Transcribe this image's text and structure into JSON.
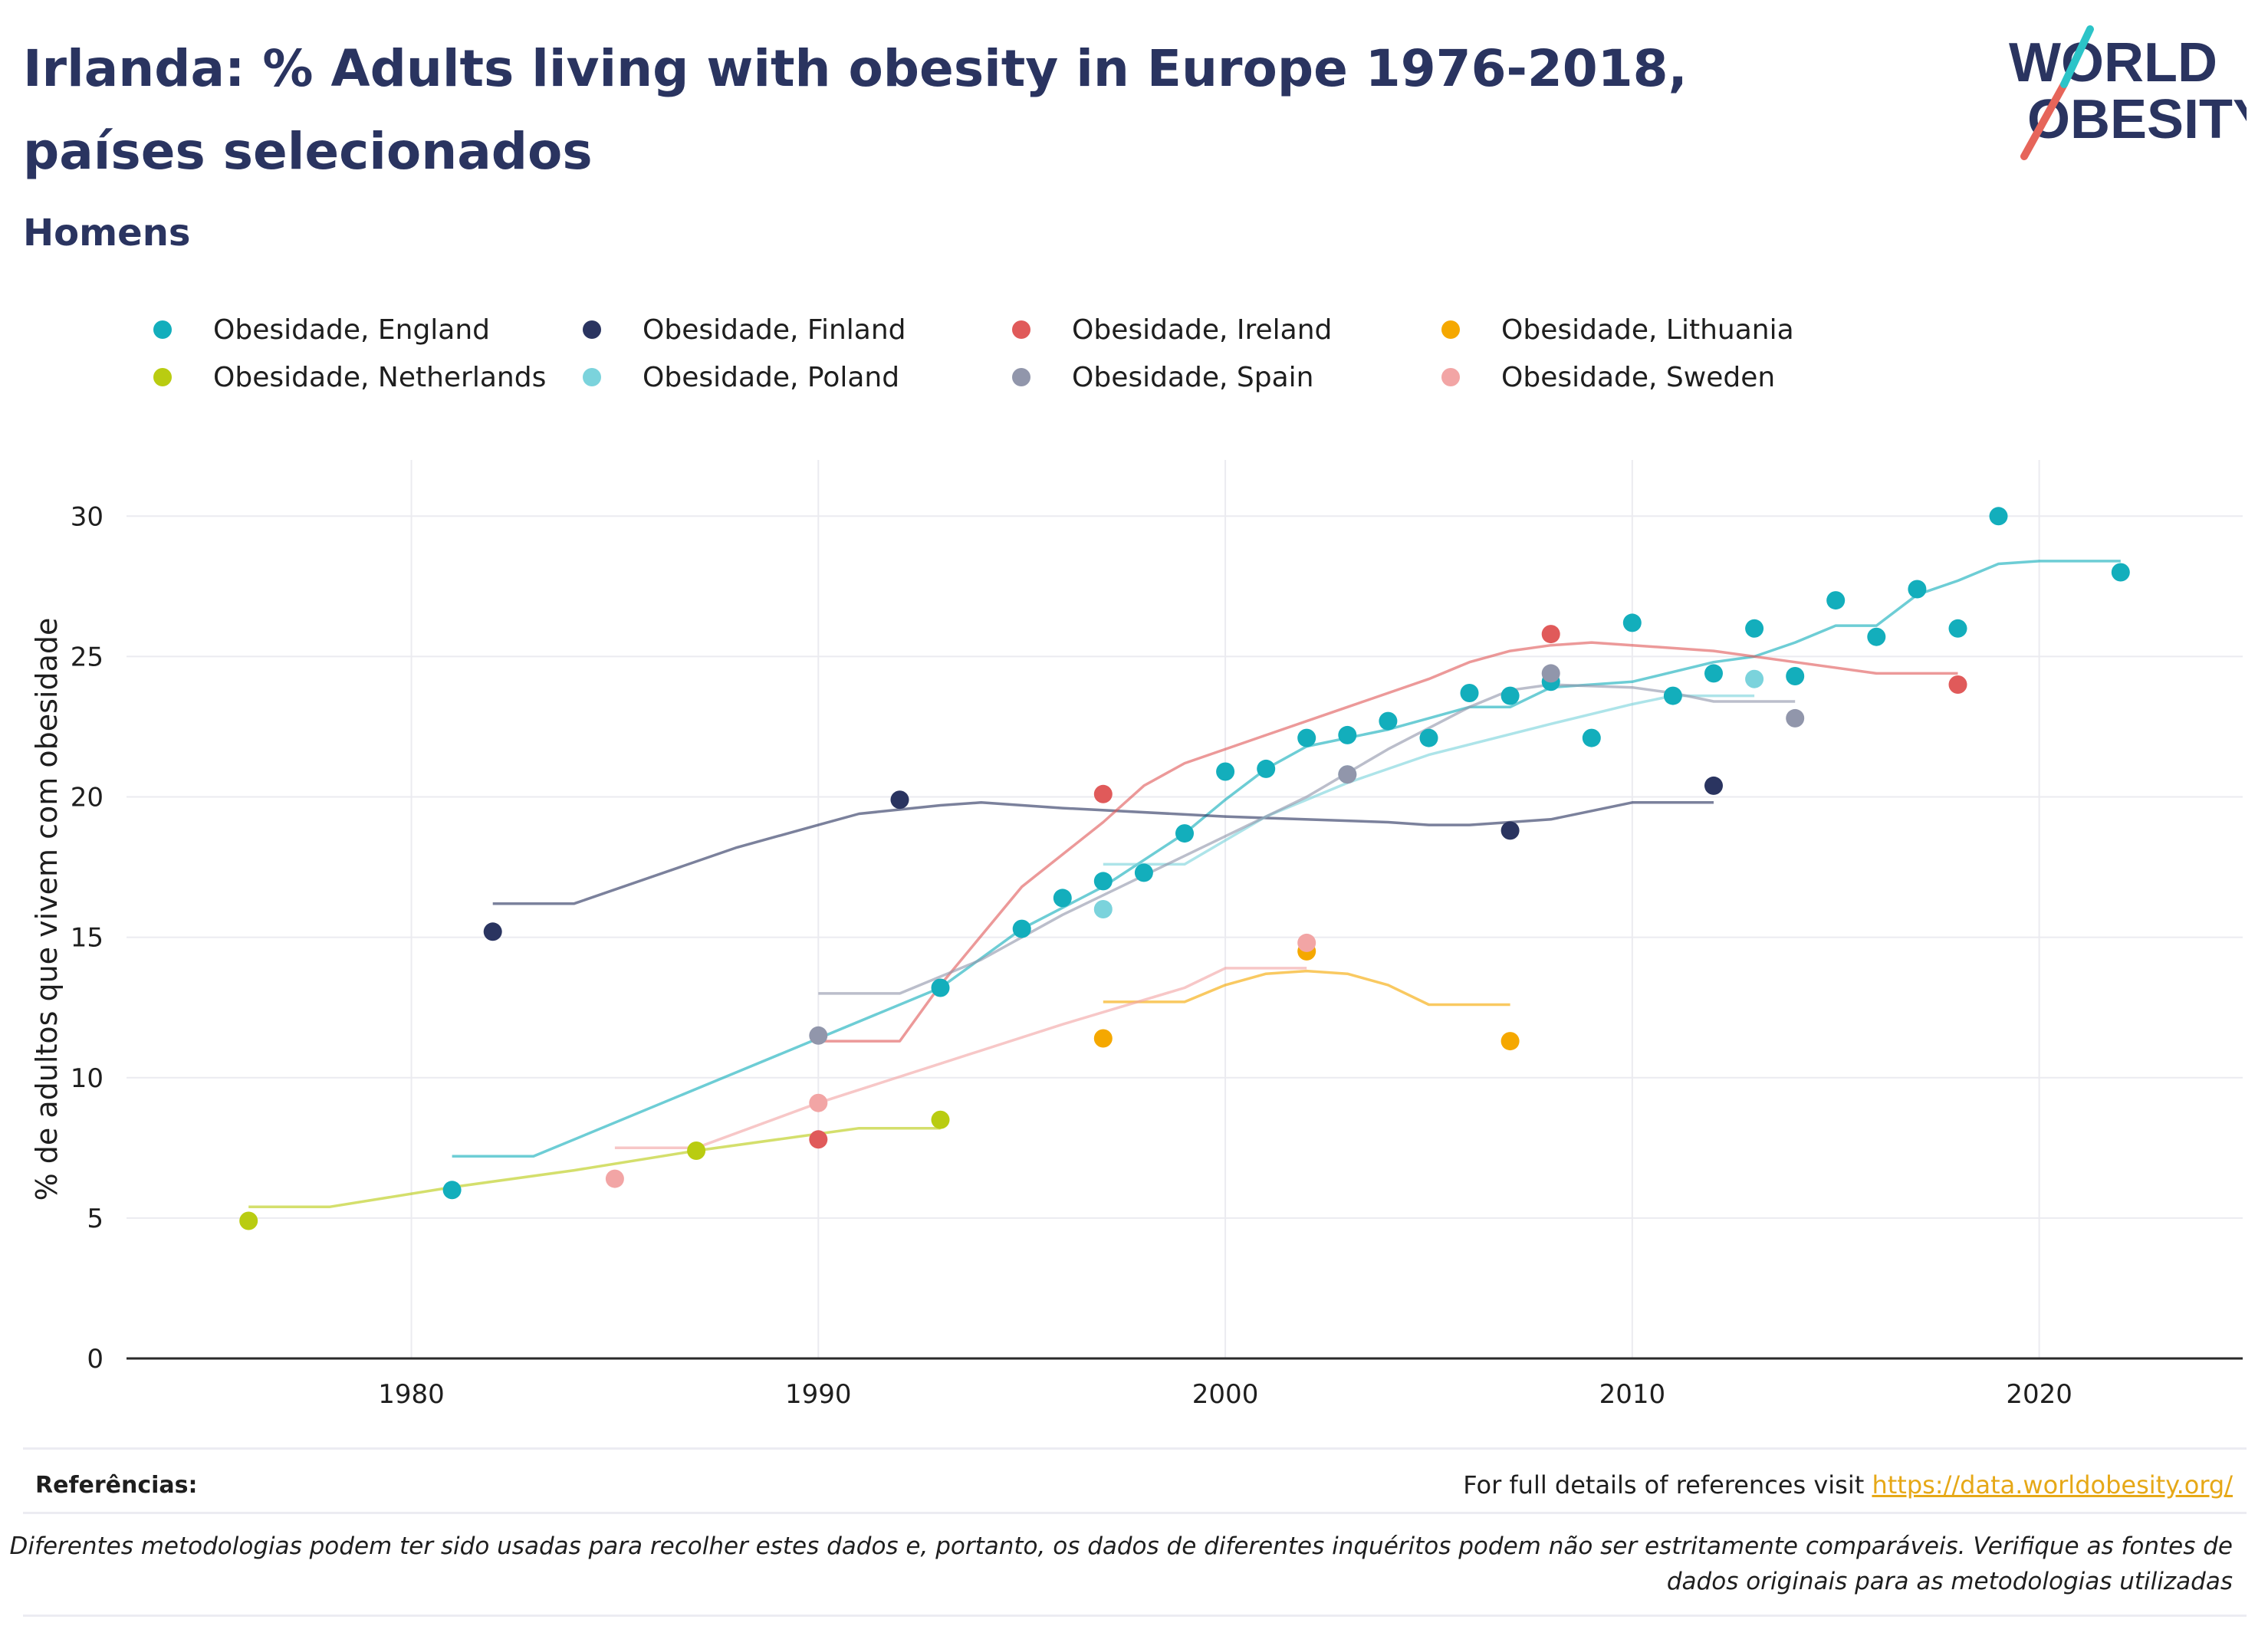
{
  "title": "Irlanda: % Adults living with obesity in Europe 1976-2018, países selecionados",
  "subtitle": "Homens",
  "logo": {
    "line1": "WORLD",
    "line2": "OBESITY"
  },
  "footer": {
    "refs_label": "Referências:",
    "refs_text": "For full details of references visit ",
    "refs_link": "https://data.worldobesity.org/",
    "disclaimer": "Diferentes metodologias podem ter sido usadas para recolher estes dados e, portanto, os dados de diferentes inquéritos podem não ser estritamente comparáveis. Verifique as fontes de dados originais para as metodologias utilizadas"
  },
  "chart_data": {
    "type": "scatter",
    "ylabel": "% de adultos que vivem com obesidade",
    "xlabel": "",
    "xlim": [
      1973,
      2025
    ],
    "ylim": [
      0,
      32
    ],
    "xticks": [
      1980,
      1990,
      2000,
      2010,
      2020
    ],
    "yticks": [
      0,
      5,
      10,
      15,
      20,
      25,
      30
    ],
    "grid": true,
    "legend_position": "top",
    "series": [
      {
        "name": "Obesidade, England",
        "color": "#13aebc",
        "points": [
          [
            1981,
            6.0
          ],
          [
            1993,
            13.2
          ],
          [
            1995,
            15.3
          ],
          [
            1996,
            16.4
          ],
          [
            1997,
            17.0
          ],
          [
            1998,
            17.3
          ],
          [
            1999,
            18.7
          ],
          [
            2000,
            20.9
          ],
          [
            2001,
            21.0
          ],
          [
            2002,
            22.1
          ],
          [
            2003,
            22.2
          ],
          [
            2004,
            22.7
          ],
          [
            2005,
            22.1
          ],
          [
            2006,
            23.7
          ],
          [
            2007,
            23.6
          ],
          [
            2008,
            24.1
          ],
          [
            2009,
            22.1
          ],
          [
            2010,
            26.2
          ],
          [
            2011,
            23.6
          ],
          [
            2012,
            24.4
          ],
          [
            2013,
            26.0
          ],
          [
            2014,
            24.3
          ],
          [
            2015,
            27.0
          ],
          [
            2016,
            25.7
          ],
          [
            2017,
            27.4
          ],
          [
            2018,
            26.0
          ],
          [
            2019,
            30.0
          ],
          [
            2022,
            28.0
          ]
        ],
        "trend": [
          [
            1981,
            7.2
          ],
          [
            1983,
            7.2
          ],
          [
            1990,
            11.4
          ],
          [
            1993,
            13.2
          ],
          [
            1995,
            15.3
          ],
          [
            1997,
            16.8
          ],
          [
            1999,
            18.7
          ],
          [
            2000,
            19.9
          ],
          [
            2001,
            21.0
          ],
          [
            2002,
            21.8
          ],
          [
            2004,
            22.4
          ],
          [
            2005,
            22.8
          ],
          [
            2006,
            23.2
          ],
          [
            2007,
            23.2
          ],
          [
            2008,
            23.9
          ],
          [
            2010,
            24.1
          ],
          [
            2012,
            24.8
          ],
          [
            2013,
            25.0
          ],
          [
            2014,
            25.5
          ],
          [
            2015,
            26.1
          ],
          [
            2016,
            26.1
          ],
          [
            2017,
            27.2
          ],
          [
            2018,
            27.7
          ],
          [
            2019,
            28.3
          ],
          [
            2020,
            28.4
          ],
          [
            2022,
            28.4
          ]
        ]
      },
      {
        "name": "Obesidade, Finland",
        "color": "#2a3460",
        "points": [
          [
            1982,
            15.2
          ],
          [
            1992,
            19.9
          ],
          [
            2007,
            18.8
          ],
          [
            2012,
            20.4
          ]
        ],
        "trend": [
          [
            1982,
            16.2
          ],
          [
            1984,
            16.2
          ],
          [
            1988,
            18.2
          ],
          [
            1990,
            19.0
          ],
          [
            1991,
            19.4
          ],
          [
            1993,
            19.7
          ],
          [
            1994,
            19.8
          ],
          [
            1996,
            19.6
          ],
          [
            2000,
            19.3
          ],
          [
            2004,
            19.1
          ],
          [
            2005,
            19.0
          ],
          [
            2006,
            19.0
          ],
          [
            2007,
            19.1
          ],
          [
            2008,
            19.2
          ],
          [
            2009,
            19.5
          ],
          [
            2010,
            19.8
          ],
          [
            2012,
            19.8
          ]
        ]
      },
      {
        "name": "Obesidade, Ireland",
        "color": "#e05a5a",
        "points": [
          [
            1990,
            7.8
          ],
          [
            1997,
            20.1
          ],
          [
            2008,
            25.8
          ],
          [
            2018,
            24.0
          ]
        ],
        "trend": [
          [
            1990,
            11.3
          ],
          [
            1992,
            11.3
          ],
          [
            1993,
            13.3
          ],
          [
            1995,
            16.8
          ],
          [
            1997,
            19.1
          ],
          [
            1998,
            20.4
          ],
          [
            1999,
            21.2
          ],
          [
            2001,
            22.2
          ],
          [
            2003,
            23.2
          ],
          [
            2005,
            24.2
          ],
          [
            2006,
            24.8
          ],
          [
            2007,
            25.2
          ],
          [
            2008,
            25.4
          ],
          [
            2009,
            25.5
          ],
          [
            2010,
            25.4
          ],
          [
            2012,
            25.2
          ],
          [
            2014,
            24.8
          ],
          [
            2016,
            24.4
          ],
          [
            2018,
            24.4
          ]
        ]
      },
      {
        "name": "Obesidade, Lithuania",
        "color": "#f5a800",
        "points": [
          [
            1997,
            11.4
          ],
          [
            2002,
            14.5
          ],
          [
            2007,
            11.3
          ]
        ],
        "trend": [
          [
            1997,
            12.7
          ],
          [
            1999,
            12.7
          ],
          [
            2000,
            13.3
          ],
          [
            2001,
            13.7
          ],
          [
            2002,
            13.8
          ],
          [
            2003,
            13.7
          ],
          [
            2004,
            13.3
          ],
          [
            2005,
            12.6
          ],
          [
            2007,
            12.6
          ]
        ]
      },
      {
        "name": "Obesidade, Netherlands",
        "color": "#b9cc11",
        "points": [
          [
            1976,
            4.9
          ],
          [
            1987,
            7.4
          ],
          [
            1993,
            8.5
          ]
        ],
        "trend": [
          [
            1976,
            5.4
          ],
          [
            1978,
            5.4
          ],
          [
            1981,
            6.1
          ],
          [
            1984,
            6.7
          ],
          [
            1987,
            7.4
          ],
          [
            1990,
            8.0
          ],
          [
            1991,
            8.2
          ],
          [
            1993,
            8.2
          ]
        ]
      },
      {
        "name": "Obesidade, Poland",
        "color": "#7bd3dc",
        "points": [
          [
            1997,
            16.0
          ],
          [
            2003,
            20.8
          ],
          [
            2013,
            24.2
          ]
        ],
        "trend": [
          [
            1997,
            17.6
          ],
          [
            1999,
            17.6
          ],
          [
            2001,
            19.3
          ],
          [
            2003,
            20.5
          ],
          [
            2005,
            21.5
          ],
          [
            2008,
            22.6
          ],
          [
            2010,
            23.3
          ],
          [
            2011,
            23.6
          ],
          [
            2013,
            23.6
          ]
        ]
      },
      {
        "name": "Obesidade, Spain",
        "color": "#9196ab",
        "points": [
          [
            1990,
            11.5
          ],
          [
            2003,
            20.8
          ],
          [
            2008,
            24.4
          ],
          [
            2014,
            22.8
          ]
        ],
        "trend": [
          [
            1990,
            13.0
          ],
          [
            1992,
            13.0
          ],
          [
            1994,
            14.2
          ],
          [
            1996,
            15.8
          ],
          [
            1998,
            17.2
          ],
          [
            2000,
            18.6
          ],
          [
            2002,
            20.0
          ],
          [
            2004,
            21.7
          ],
          [
            2006,
            23.2
          ],
          [
            2007,
            23.8
          ],
          [
            2008,
            24.0
          ],
          [
            2010,
            23.9
          ],
          [
            2011,
            23.7
          ],
          [
            2012,
            23.4
          ],
          [
            2014,
            23.4
          ]
        ]
      },
      {
        "name": "Obesidade, Sweden",
        "color": "#f2a5a5",
        "points": [
          [
            1985,
            6.4
          ],
          [
            1990,
            9.1
          ],
          [
            2002,
            14.8
          ]
        ],
        "trend": [
          [
            1985,
            7.5
          ],
          [
            1987,
            7.5
          ],
          [
            1990,
            9.1
          ],
          [
            1993,
            10.5
          ],
          [
            1996,
            11.9
          ],
          [
            1999,
            13.2
          ],
          [
            2000,
            13.9
          ],
          [
            2002,
            13.9
          ]
        ]
      }
    ]
  }
}
